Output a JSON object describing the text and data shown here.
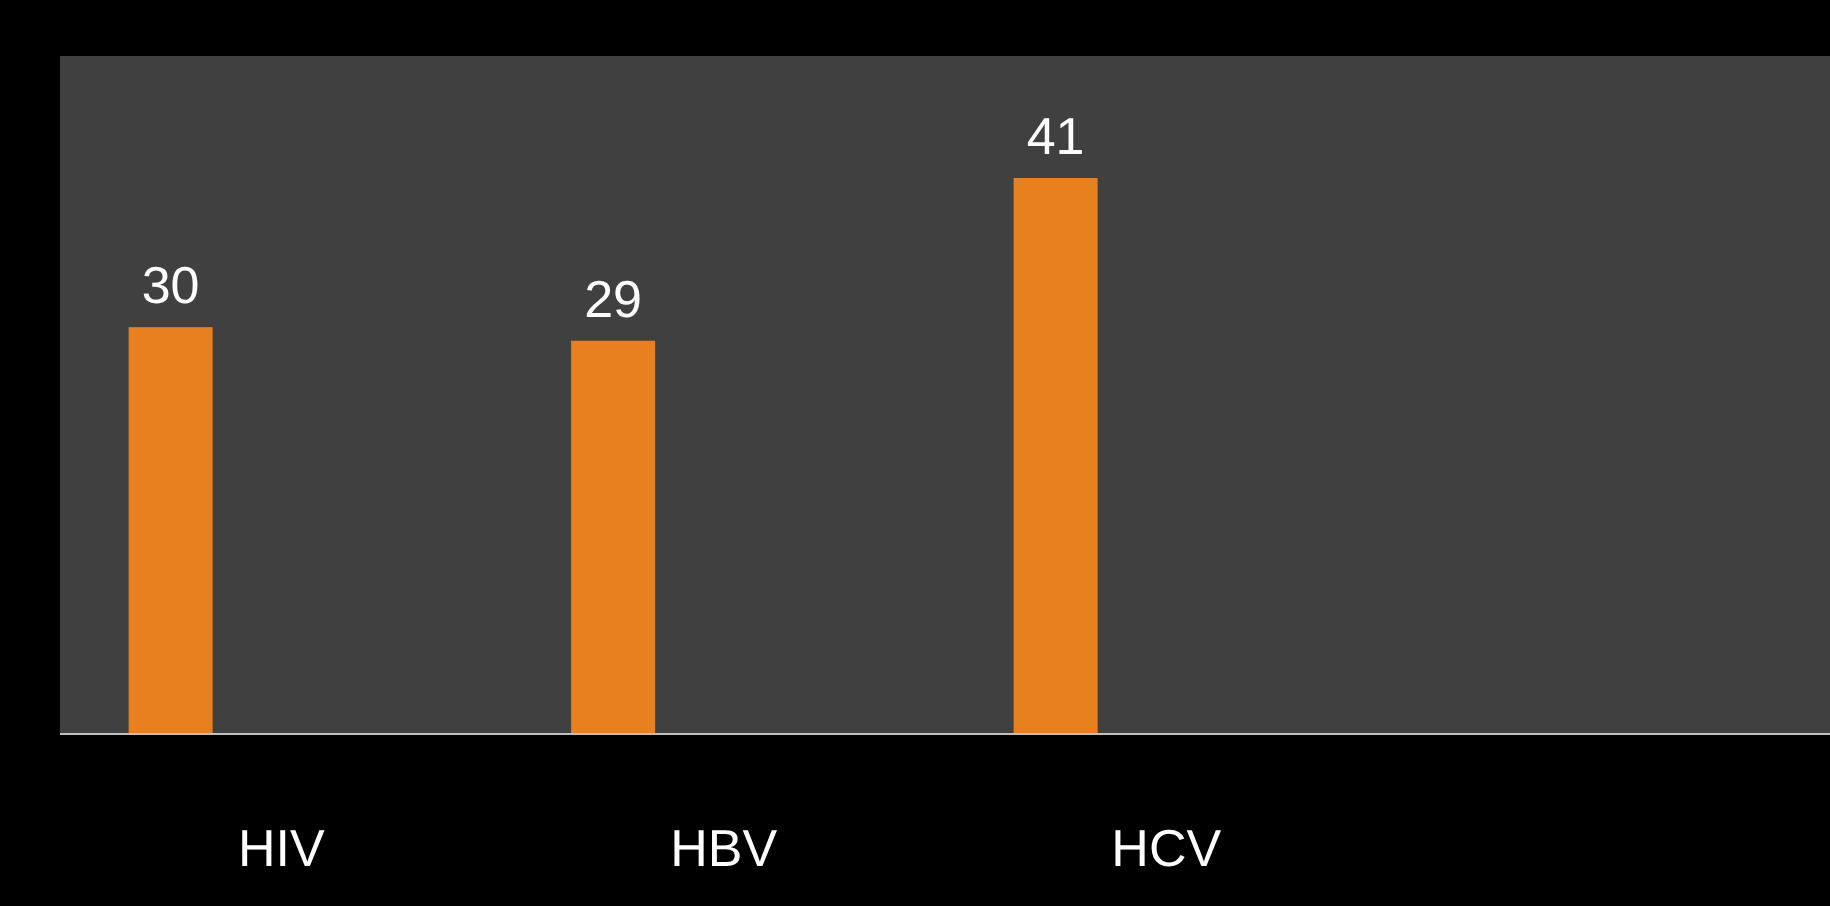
{
  "chart_data": {
    "type": "bar",
    "categories": [
      "HIV",
      "HBV",
      "HCV"
    ],
    "values": [
      30,
      29,
      41
    ],
    "color": "#e8801f",
    "data_labels": true
  }
}
